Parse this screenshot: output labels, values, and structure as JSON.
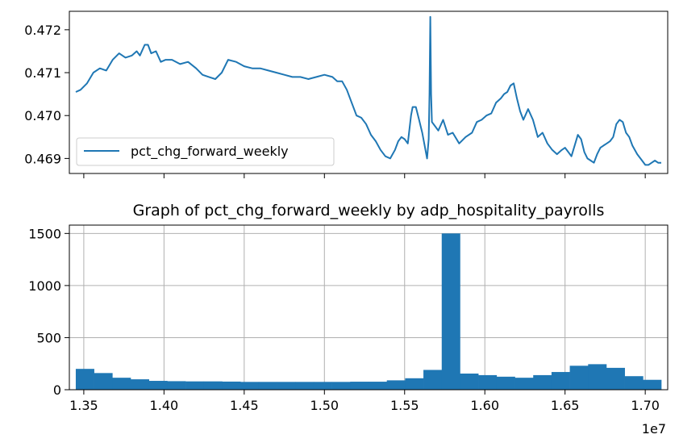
{
  "figure": {
    "colors": {
      "line": "#1f77b4",
      "bar": "#1f77b4",
      "grid": "#b0b0b0",
      "axis": "#000000",
      "background": "#ffffff"
    }
  },
  "chart_data": [
    {
      "type": "line",
      "title": "",
      "xlabel": "",
      "ylabel": "",
      "x_tick_labels_visible": false,
      "ylim": [
        0.46865,
        0.47243
      ],
      "y_ticks": [
        0.469,
        0.47,
        0.471,
        0.472
      ],
      "y_tick_labels": [
        "0.469",
        "0.470",
        "0.471",
        "0.472"
      ],
      "grid": false,
      "legend_position": "lower-left",
      "series": [
        {
          "name": "pct_chg_forward_weekly",
          "color": "#1f77b4",
          "x": [
            13450000,
            13480000,
            13520000,
            13560000,
            13600000,
            13640000,
            13680000,
            13720000,
            13760000,
            13800000,
            13830000,
            13850000,
            13880000,
            13900000,
            13920000,
            13950000,
            13980000,
            14010000,
            14050000,
            14100000,
            14150000,
            14200000,
            14240000,
            14280000,
            14320000,
            14360000,
            14400000,
            14450000,
            14500000,
            14550000,
            14600000,
            14650000,
            14700000,
            14750000,
            14800000,
            14850000,
            14900000,
            14950000,
            15000000,
            15050000,
            15080000,
            15110000,
            15140000,
            15170000,
            15200000,
            15230000,
            15260000,
            15290000,
            15320000,
            15350000,
            15380000,
            15410000,
            15440000,
            15460000,
            15480000,
            15500000,
            15520000,
            15540000,
            15550000,
            15570000,
            15590000,
            15610000,
            15630000,
            15640000,
            15650000,
            15655000,
            15660000,
            15665000,
            15670000,
            15690000,
            15710000,
            15740000,
            15770000,
            15800000,
            15840000,
            15880000,
            15920000,
            15950000,
            15980000,
            16010000,
            16040000,
            16070000,
            16100000,
            16120000,
            16140000,
            16160000,
            16180000,
            16200000,
            16220000,
            16240000,
            16270000,
            16300000,
            16330000,
            16360000,
            16390000,
            16420000,
            16450000,
            16480000,
            16500000,
            16520000,
            16540000,
            16560000,
            16580000,
            16600000,
            16620000,
            16640000,
            16660000,
            16680000,
            16700000,
            16720000,
            16740000,
            16760000,
            16780000,
            16800000,
            16820000,
            16840000,
            16860000,
            16880000,
            16900000,
            16920000,
            16950000,
            16980000,
            17000000,
            17020000,
            17040000,
            17060000,
            17080000,
            17100000
          ],
          "y": [
            0.47055,
            0.4706,
            0.47075,
            0.471,
            0.4711,
            0.47105,
            0.4713,
            0.47145,
            0.47135,
            0.4714,
            0.4715,
            0.4714,
            0.47165,
            0.47165,
            0.47145,
            0.4715,
            0.47125,
            0.4713,
            0.4713,
            0.4712,
            0.47125,
            0.4711,
            0.47095,
            0.4709,
            0.47085,
            0.471,
            0.4713,
            0.47125,
            0.47115,
            0.4711,
            0.4711,
            0.47105,
            0.471,
            0.47095,
            0.4709,
            0.4709,
            0.47085,
            0.4709,
            0.47095,
            0.4709,
            0.4708,
            0.4708,
            0.4706,
            0.4703,
            0.47,
            0.46995,
            0.4698,
            0.46955,
            0.4694,
            0.4692,
            0.46905,
            0.469,
            0.4692,
            0.4694,
            0.4695,
            0.46945,
            0.46935,
            0.47,
            0.4702,
            0.4702,
            0.4699,
            0.4696,
            0.4692,
            0.469,
            0.46945,
            0.4705,
            0.4723,
            0.4705,
            0.46985,
            0.46975,
            0.46965,
            0.4699,
            0.46955,
            0.4696,
            0.46935,
            0.4695,
            0.4696,
            0.46985,
            0.4699,
            0.47,
            0.47005,
            0.4703,
            0.4704,
            0.4705,
            0.47055,
            0.4707,
            0.47075,
            0.4704,
            0.4701,
            0.4699,
            0.47015,
            0.4699,
            0.4695,
            0.4696,
            0.46935,
            0.4692,
            0.4691,
            0.4692,
            0.46925,
            0.46915,
            0.46905,
            0.4693,
            0.46955,
            0.46945,
            0.46915,
            0.469,
            0.46895,
            0.4689,
            0.4691,
            0.46925,
            0.4693,
            0.46935,
            0.4694,
            0.4695,
            0.4698,
            0.4699,
            0.46985,
            0.4696,
            0.4695,
            0.4693,
            0.4691,
            0.46895,
            0.46885,
            0.46885,
            0.4689,
            0.46895,
            0.4689,
            0.4689
          ]
        }
      ]
    },
    {
      "type": "bar",
      "subtype": "histogram",
      "title": "Graph of pct_chg_forward_weekly by adp_hospitality_payrolls",
      "xlabel": "",
      "ylabel": "",
      "x_offset_label": "1e7",
      "xlim": [
        1.341,
        1.714
      ],
      "x_ticks": [
        1.35,
        1.4,
        1.45,
        1.5,
        1.55,
        1.6,
        1.65,
        1.7
      ],
      "x_tick_labels": [
        "1.35",
        "1.40",
        "1.45",
        "1.50",
        "1.55",
        "1.60",
        "1.65",
        "1.70"
      ],
      "ylim": [
        0,
        1580
      ],
      "y_ticks": [
        0,
        500,
        1000,
        1500
      ],
      "y_tick_labels": [
        "0",
        "500",
        "1000",
        "1500"
      ],
      "grid": true,
      "bin_range": [
        1.345,
        1.71
      ],
      "counts": [
        200,
        160,
        115,
        100,
        85,
        82,
        80,
        80,
        78,
        75,
        75,
        75,
        75,
        75,
        75,
        77,
        77,
        90,
        110,
        190,
        1500,
        155,
        140,
        125,
        115,
        140,
        170,
        230,
        245,
        210,
        130,
        95
      ]
    }
  ]
}
